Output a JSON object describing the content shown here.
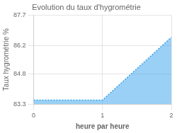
{
  "chart_data": {
    "type": "area",
    "title": "Evolution du taux d'hygrométrie",
    "xlabel": "heure par heure",
    "ylabel": "Taux hygrométrie %",
    "x": [
      0,
      1,
      2
    ],
    "values": [
      83.5,
      83.5,
      86.6
    ],
    "xlim": [
      0,
      2
    ],
    "xticks": [
      0,
      1,
      2
    ],
    "ylim": [
      83.3,
      87.7
    ],
    "yticks": [
      83.3,
      84.8,
      86.2,
      87.7
    ],
    "line_style": "dotted",
    "grid": true
  }
}
